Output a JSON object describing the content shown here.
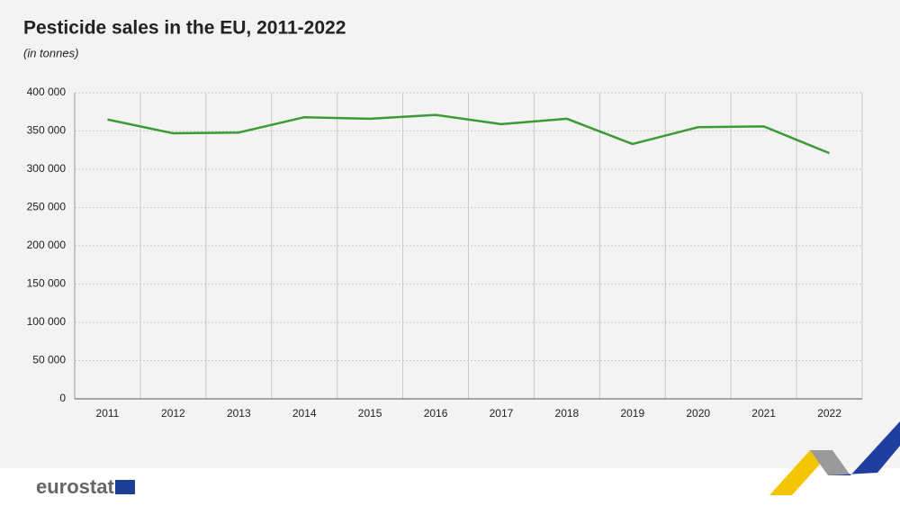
{
  "chart_data": {
    "type": "line",
    "title": "Pesticide sales in the EU, 2011-2022",
    "subtitle": "(in tonnes)",
    "categories": [
      "2011",
      "2012",
      "2013",
      "2014",
      "2015",
      "2016",
      "2017",
      "2018",
      "2019",
      "2020",
      "2021",
      "2022"
    ],
    "series": [
      {
        "name": "Pesticide sales",
        "color": "#3a9b35",
        "values": [
          365000,
          347000,
          348000,
          368000,
          366000,
          371000,
          359000,
          366000,
          333000,
          355000,
          356000,
          321000
        ]
      }
    ],
    "ylim": [
      0,
      400000
    ],
    "yticks": [
      0,
      {
        "value": 50000,
        "label": "50 000"
      },
      {
        "value": 100000,
        "label": "100 000"
      },
      {
        "value": 150000,
        "label": "150 000"
      },
      {
        "value": 200000,
        "label": "200 000"
      },
      {
        "value": 250000,
        "label": "250 000"
      },
      {
        "value": 300000,
        "label": "300 000"
      },
      {
        "value": 350000,
        "label": "350 000"
      },
      {
        "value": 400000,
        "label": "400 000"
      }
    ],
    "grid": true
  },
  "brand": "eurostat"
}
